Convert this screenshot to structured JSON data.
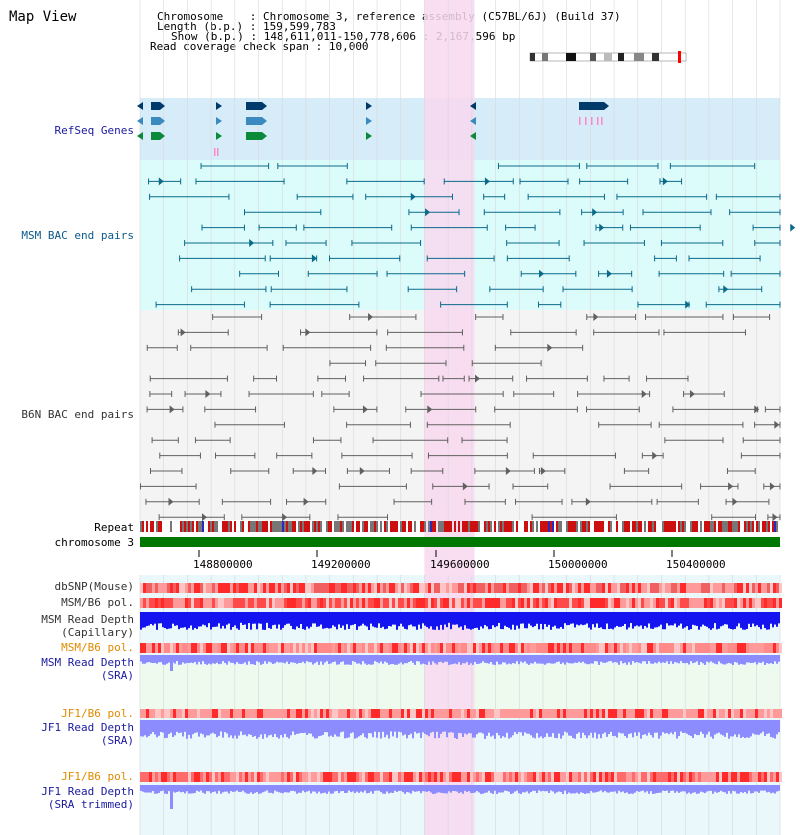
{
  "title": "Map View",
  "header": {
    "chromosome_label": "Chromosome",
    "chromosome_value": ": Chromosome 3, reference assembly (C57BL/6J) (Build 37)",
    "length_label": "Length (b.p.)",
    "length_value": ": 159,599,783",
    "show_label": "Show (b.p.)",
    "show_value": ": 148,611,011-150,778,606 : 2,167,596 bp",
    "coverage_label": "Read coverage check span",
    "coverage_value": ": 10,000"
  },
  "region": {
    "start": 148611011,
    "end": 150778606,
    "highlight_start": 149574000,
    "highlight_end": 149744000
  },
  "tracks": {
    "refseq": "RefSeq Genes",
    "msm_bac": "MSM BAC end pairs",
    "b6n_bac": "B6N BAC end pairs",
    "repeat": "Repeat",
    "chromosome": "chromosome 3",
    "dbsnp": "dbSNP(Mouse)",
    "msm_pol": "MSM/B6 pol.",
    "msm_depth_cap_1": "MSM Read Depth",
    "msm_depth_cap_2": "(Capillary)",
    "msm_pol_2": "MSM/B6 pol.",
    "msm_depth_sra_1": "MSM Read Depth",
    "msm_depth_sra_2": "(SRA)",
    "jf1_pol": "JF1/B6 pol.",
    "jf1_depth_1": "JF1 Read Depth",
    "jf1_depth_2": "(SRA)",
    "jf1_pol_2": "JF1/B6 pol.",
    "jf1_trim_1": "JF1 Read Depth",
    "jf1_trim_2": "(SRA trimmed)"
  },
  "axis_ticks": [
    "148800000",
    "149200000",
    "149600000",
    "150000000",
    "150400000"
  ],
  "colors": {
    "refseq_bg": "#d6ecf8",
    "msm_bg": "#dcfcfc",
    "b6n_bg": "#f4f4f4",
    "highlight": "#f8d8f0",
    "gene_dark": "#003a6a",
    "gene_mid": "#3a8abf",
    "gene_green": "#0a8a3a",
    "msm_line": "#0a6a8a",
    "b6n_line": "#606060",
    "chrom": "#007700",
    "dbsnp": "#f06060",
    "depth_blue": "#1414f0",
    "depth_light": "#8c8cff"
  }
}
